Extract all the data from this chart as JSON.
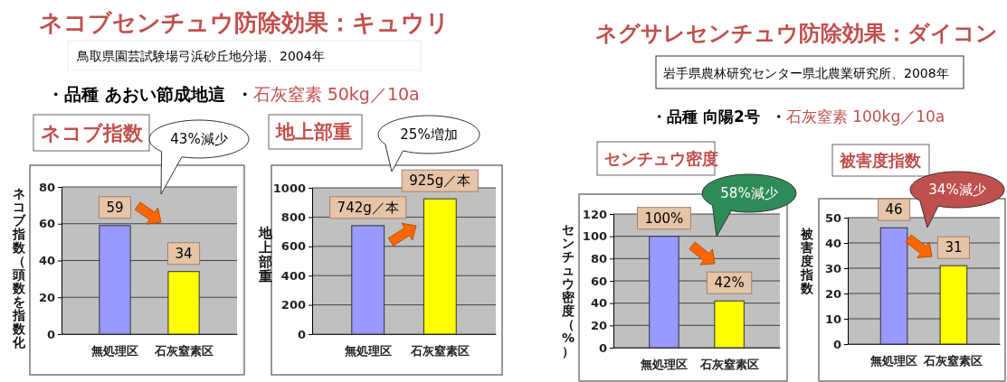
{
  "chart_data": [
    {
      "type": "bar",
      "title": "ネコブ指数",
      "ylabel": "ネコブ指数（頭数を指数化",
      "categories": [
        "無処理区",
        "石灰窒素区"
      ],
      "values": [
        59,
        34
      ],
      "colors": [
        "#9999ff",
        "#ffff00"
      ],
      "ylim": [
        0,
        80
      ],
      "yticks": [
        0,
        20,
        40,
        60,
        80
      ],
      "grid": "y",
      "data_labels": true,
      "annotations": [
        "ネコブセンチュウ防除効果：キュウリ",
        "鳥取県園芸試験場弓浜砂丘地分場、2004年",
        "・品種 あおい節成地這",
        "・石灰窒素 50kg／10a",
        "43%減少"
      ]
    },
    {
      "type": "bar",
      "title": "地上部重",
      "ylabel": "地上部重",
      "categories": [
        "無処理区",
        "石灰窒素区"
      ],
      "values": [
        742,
        925
      ],
      "colors": [
        "#9999ff",
        "#ffff00"
      ],
      "ylim": [
        0,
        1000
      ],
      "yticks": [
        0,
        200,
        400,
        600,
        800,
        1000
      ],
      "grid": "y",
      "value_labels": [
        "742g／本",
        "925g／本"
      ],
      "annotations": [
        "25%増加"
      ]
    },
    {
      "type": "bar",
      "title": "センチュウ密度",
      "ylabel": "センチュウ密度（%）",
      "categories": [
        "無処理区",
        "石灰窒素区"
      ],
      "values": [
        100,
        42
      ],
      "colors": [
        "#9999ff",
        "#ffff00"
      ],
      "ylim": [
        0,
        120
      ],
      "yticks": [
        0,
        20,
        40,
        60,
        80,
        100,
        120
      ],
      "grid": "y",
      "value_labels": [
        "100%",
        "42%"
      ],
      "annotations": [
        "ネグサレセンチュウ防除効果：ダイコン",
        "岩手県農林研究センター県北農業研究所、2008年",
        "・品種 向陽2号",
        "・石灰窒素 100kg／10a",
        "58%減少"
      ]
    },
    {
      "type": "bar",
      "title": "被害度指数",
      "ylabel": "被害度指数",
      "categories": [
        "無処理区",
        "石灰窒素区"
      ],
      "values": [
        46,
        31
      ],
      "colors": [
        "#9999ff",
        "#ffff00"
      ],
      "ylim": [
        0,
        50
      ],
      "yticks": [
        0,
        10,
        20,
        30,
        40,
        50
      ],
      "grid": "y",
      "data_labels": true,
      "annotations": [
        "34%減少"
      ]
    }
  ]
}
